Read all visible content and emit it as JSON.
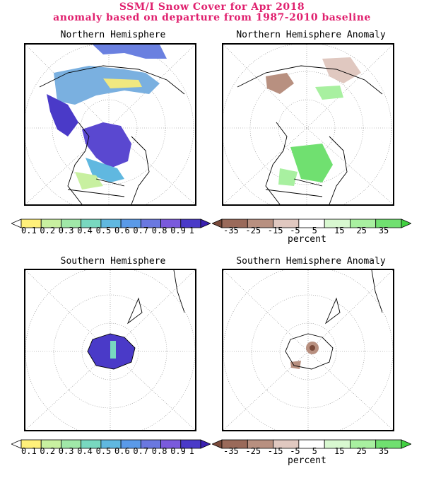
{
  "header": {
    "title": "SSM/I Snow Cover for Apr 2018",
    "subtitle": "anomaly based on departure from 1987-2010 baseline"
  },
  "panels": {
    "nh": {
      "title": "Northern Hemisphere"
    },
    "nh_anom": {
      "title": "Northern Hemisphere Anomaly"
    },
    "sh": {
      "title": "Southern Hemisphere"
    },
    "sh_anom": {
      "title": "Southern Hemisphere Anomaly"
    }
  },
  "colorbars": {
    "cover": {
      "ticks": [
        "0.1",
        "0.2",
        "0.3",
        "0.4",
        "0.5",
        "0.6",
        "0.7",
        "0.8",
        "0.9",
        "1"
      ],
      "colors": [
        "#ffffff",
        "#fff07a",
        "#c8f0a0",
        "#a0e8a8",
        "#78d8c0",
        "#60b8e0",
        "#5a9ae8",
        "#6a78e0",
        "#7a5adc",
        "#4a3ac8",
        "#3a20b0"
      ]
    },
    "anomaly": {
      "ticks": [
        "-35",
        "-25",
        "-15",
        "-5",
        "5",
        "15",
        "25",
        "35"
      ],
      "unit": "percent",
      "colors": [
        "#7a4a3a",
        "#9a6a5a",
        "#b89080",
        "#e0c8c0",
        "#ffffff",
        "#d8f8d0",
        "#a8f0a0",
        "#70e070",
        "#40d040"
      ]
    }
  }
}
